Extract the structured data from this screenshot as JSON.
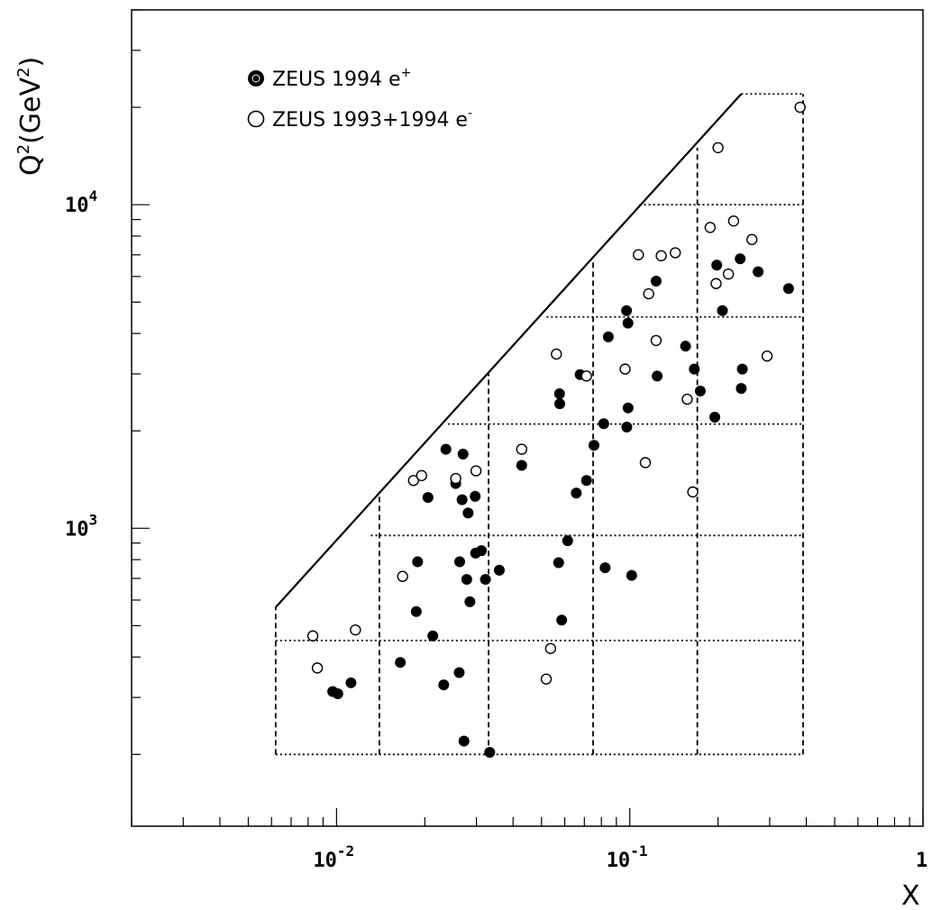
{
  "chart_data": {
    "type": "scatter",
    "xlabel": "X",
    "ylabel": "Q",
    "ylabel_unit": "GeV",
    "x_scale": "log",
    "y_scale": "log",
    "xlim": [
      0.002,
      1
    ],
    "ylim": [
      120,
      40000
    ],
    "x_ticks": [
      {
        "value": 0.01,
        "base": "10",
        "exp": "-2"
      },
      {
        "value": 0.1,
        "base": "10",
        "exp": "-1"
      },
      {
        "value": 1,
        "base": "1",
        "exp": ""
      }
    ],
    "y_ticks": [
      {
        "value": 1000,
        "base": "10",
        "exp": "3"
      },
      {
        "value": 10000,
        "base": "10",
        "exp": "4"
      }
    ],
    "legend": {
      "position": "top-left",
      "entries": [
        {
          "marker": "filled-circle",
          "text": "ZEUS 1994 e",
          "sup": "+"
        },
        {
          "marker": "open-circle",
          "text": "ZEUS 1993+1994 e",
          "sup": "-"
        }
      ]
    },
    "kinematic_boundary": [
      [
        0.0062,
        570
      ],
      [
        0.24,
        22000
      ]
    ],
    "bins": {
      "x_edges": [
        0.0062,
        0.014,
        0.033,
        0.075,
        0.17,
        0.39
      ],
      "q2_edges": [
        200,
        450,
        950,
        2100,
        4500,
        10000,
        22000
      ],
      "dashed_verticals": [
        [
          0.0062,
          200,
          570
        ],
        [
          0.014,
          200,
          1300
        ],
        [
          0.033,
          200,
          3000
        ],
        [
          0.075,
          200,
          6800
        ],
        [
          0.17,
          200,
          15000
        ],
        [
          0.39,
          200,
          22000
        ]
      ],
      "dotted_horizontals": [
        [
          200,
          0.0062,
          0.39
        ],
        [
          450,
          0.0062,
          0.39
        ],
        [
          950,
          0.0131,
          0.39
        ],
        [
          2100,
          0.024,
          0.39
        ],
        [
          4500,
          0.052,
          0.39
        ],
        [
          10000,
          0.108,
          0.39
        ],
        [
          22000,
          0.24,
          0.39
        ]
      ]
    },
    "series": [
      {
        "name": "ZEUS 1994 e+",
        "marker": "filled",
        "points": [
          [
            0.0097,
            313
          ],
          [
            0.0101,
            308
          ],
          [
            0.0112,
            333
          ],
          [
            0.0165,
            385
          ],
          [
            0.0187,
            553
          ],
          [
            0.0189,
            788
          ],
          [
            0.0205,
            1245
          ],
          [
            0.0213,
            465
          ],
          [
            0.0232,
            328
          ],
          [
            0.0236,
            1755
          ],
          [
            0.0255,
            1375
          ],
          [
            0.0262,
            358
          ],
          [
            0.0263,
            788
          ],
          [
            0.0268,
            1225
          ],
          [
            0.027,
            1695
          ],
          [
            0.0272,
            220
          ],
          [
            0.0278,
            695
          ],
          [
            0.0281,
            1115
          ],
          [
            0.0285,
            593
          ],
          [
            0.0297,
            1255
          ],
          [
            0.0298,
            838
          ],
          [
            0.0312,
            853
          ],
          [
            0.0322,
            695
          ],
          [
            0.0333,
            203
          ],
          [
            0.0359,
            742
          ],
          [
            0.0428,
            1565
          ],
          [
            0.0572,
            783
          ],
          [
            0.0576,
            2605
          ],
          [
            0.0577,
            2425
          ],
          [
            0.0586,
            520
          ],
          [
            0.0614,
            915
          ],
          [
            0.0657,
            1285
          ],
          [
            0.0677,
            2985
          ],
          [
            0.0712,
            1405
          ],
          [
            0.0755,
            1805
          ],
          [
            0.0815,
            2105
          ],
          [
            0.0824,
            755
          ],
          [
            0.0845,
            3905
          ],
          [
            0.0975,
            4705
          ],
          [
            0.0977,
            2055
          ],
          [
            0.0986,
            4305
          ],
          [
            0.0987,
            2355
          ],
          [
            0.1015,
            715
          ],
          [
            0.123,
            5805
          ],
          [
            0.124,
            2955
          ],
          [
            0.155,
            3655
          ],
          [
            0.166,
            3105
          ],
          [
            0.174,
            2655
          ],
          [
            0.195,
            2205
          ],
          [
            0.198,
            6505
          ],
          [
            0.207,
            4705
          ],
          [
            0.238,
            6805
          ],
          [
            0.242,
            3105
          ],
          [
            0.24,
            2705
          ],
          [
            0.274,
            6205
          ],
          [
            0.348,
            5505
          ]
        ]
      },
      {
        "name": "ZEUS 1993+1994 e-",
        "marker": "open",
        "points": [
          [
            0.0083,
            465
          ],
          [
            0.0086,
            370
          ],
          [
            0.0116,
            485
          ],
          [
            0.0168,
            710
          ],
          [
            0.0183,
            1405
          ],
          [
            0.0195,
            1455
          ],
          [
            0.0255,
            1425
          ],
          [
            0.0299,
            1505
          ],
          [
            0.0428,
            1755
          ],
          [
            0.0519,
            342
          ],
          [
            0.0537,
            425
          ],
          [
            0.0562,
            3455
          ],
          [
            0.0712,
            2955
          ],
          [
            0.0964,
            3105
          ],
          [
            0.107,
            7005
          ],
          [
            0.113,
            1595
          ],
          [
            0.116,
            5305
          ],
          [
            0.123,
            3805
          ],
          [
            0.128,
            6955
          ],
          [
            0.143,
            7105
          ],
          [
            0.157,
            2505
          ],
          [
            0.164,
            1295
          ],
          [
            0.188,
            8505
          ],
          [
            0.197,
            5705
          ],
          [
            0.2,
            15005
          ],
          [
            0.217,
            6105
          ],
          [
            0.226,
            8905
          ],
          [
            0.261,
            7805
          ],
          [
            0.294,
            3405
          ],
          [
            0.381,
            20005
          ]
        ]
      }
    ]
  }
}
